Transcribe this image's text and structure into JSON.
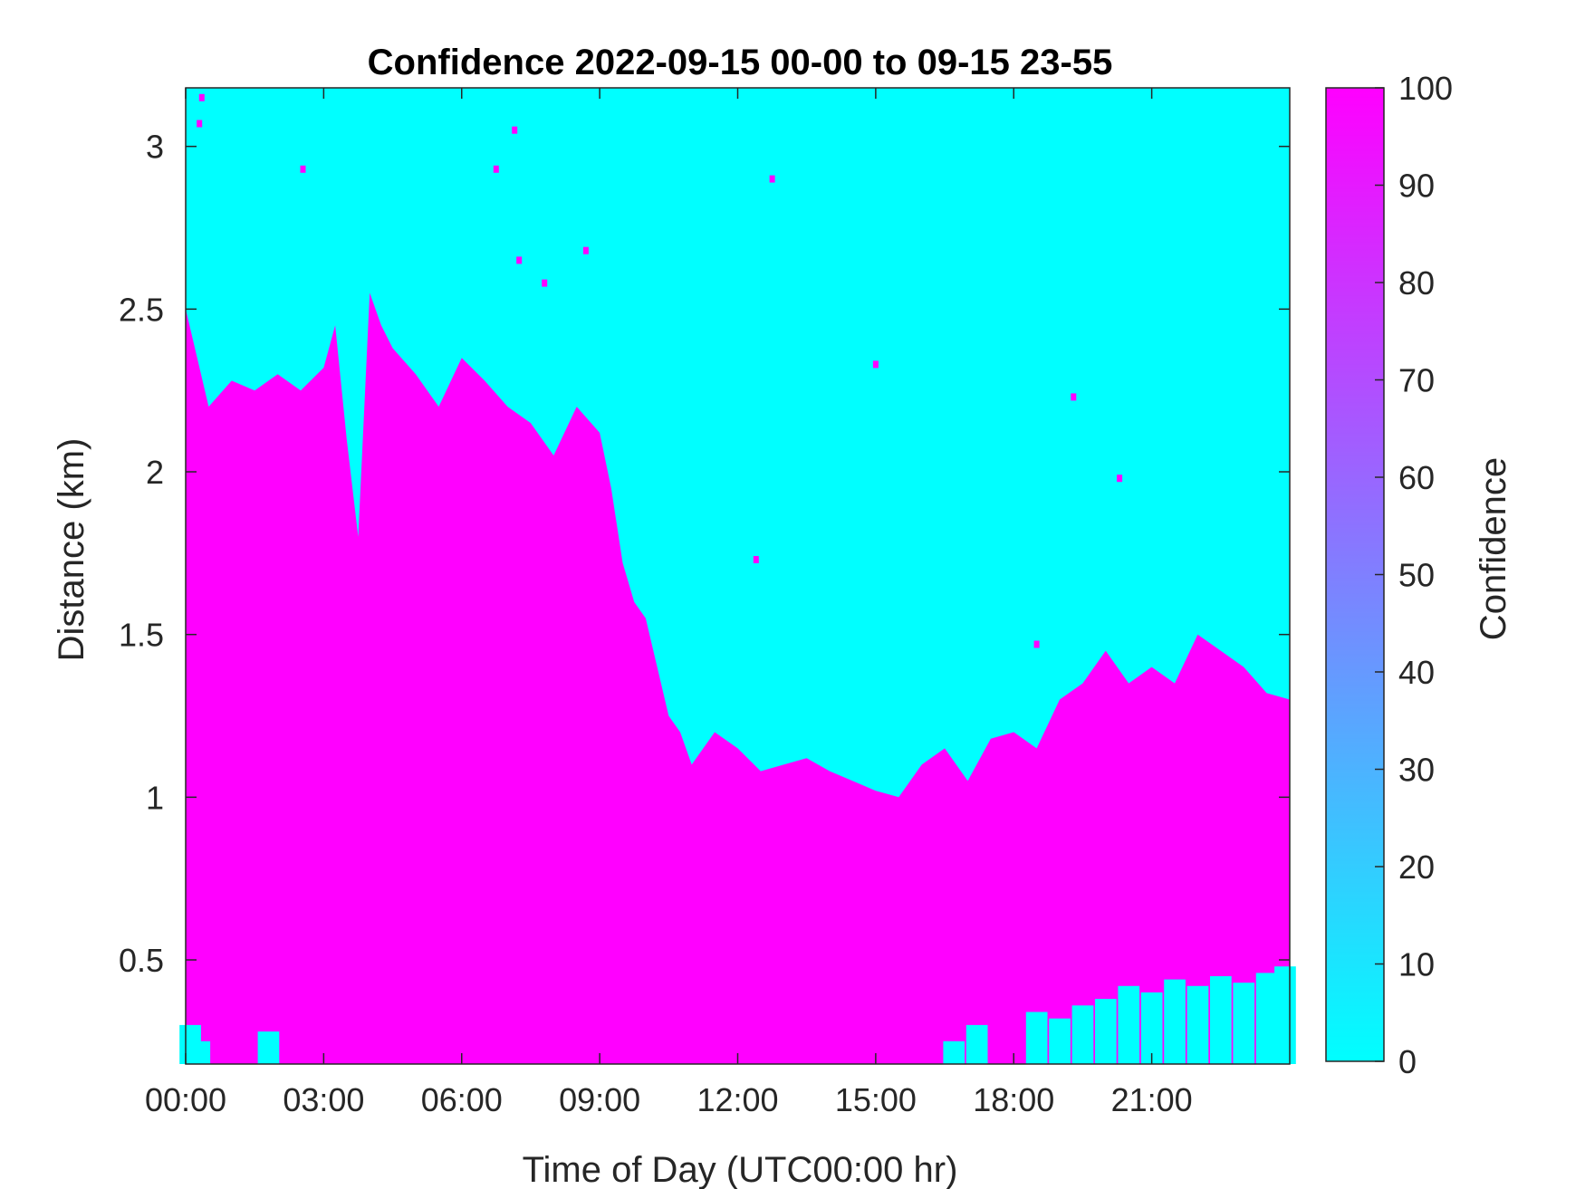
{
  "chart_data": {
    "type": "heatmap",
    "title": "Confidence 2022-09-15 00-00 to 09-15 23-55",
    "xlabel": "Time of Day (UTC00:00 hr)",
    "ylabel": "Distance (km)",
    "colorbar_label": "Confidence",
    "x_unit": "hours",
    "xlim": [
      0,
      24
    ],
    "ylim": [
      0.18,
      3.18
    ],
    "x_ticks": [
      0,
      3,
      6,
      9,
      12,
      15,
      18,
      21
    ],
    "x_tick_labels": [
      "00:00",
      "03:00",
      "06:00",
      "09:00",
      "12:00",
      "15:00",
      "18:00",
      "21:00"
    ],
    "y_ticks": [
      0.5,
      1,
      1.5,
      2,
      2.5,
      3
    ],
    "y_tick_labels": [
      "0.5",
      "1",
      "1.5",
      "2",
      "2.5",
      "3"
    ],
    "color_range": [
      0,
      100
    ],
    "colorbar_ticks": [
      0,
      10,
      20,
      30,
      40,
      50,
      60,
      70,
      80,
      90,
      100
    ],
    "colorbar_tick_labels": [
      "0",
      "10",
      "20",
      "30",
      "40",
      "50",
      "60",
      "70",
      "80",
      "90",
      "100"
    ],
    "colormap": {
      "low": "#00ffff",
      "high": "#ff00ff"
    },
    "high_confidence_top_km": {
      "hours": [
        0,
        0.5,
        1,
        1.5,
        2,
        2.5,
        3,
        3.25,
        3.5,
        3.75,
        4,
        4.25,
        4.5,
        5,
        5.5,
        6,
        6.5,
        7,
        7.5,
        8,
        8.5,
        9,
        9.25,
        9.5,
        9.75,
        10,
        10.25,
        10.5,
        10.75,
        11,
        11.5,
        12,
        12.5,
        13,
        13.5,
        14,
        14.5,
        15,
        15.5,
        16,
        16.5,
        17,
        17.5,
        18,
        18.5,
        19,
        19.5,
        20,
        20.5,
        21,
        21.5,
        22,
        22.5,
        23,
        23.5,
        24
      ],
      "distance_km": [
        2.5,
        2.2,
        2.28,
        2.25,
        2.3,
        2.25,
        2.32,
        2.45,
        2.1,
        1.8,
        2.55,
        2.45,
        2.38,
        2.3,
        2.2,
        2.35,
        2.28,
        2.2,
        2.15,
        2.05,
        2.2,
        2.12,
        1.95,
        1.72,
        1.6,
        1.55,
        1.4,
        1.25,
        1.2,
        1.1,
        1.2,
        1.15,
        1.08,
        1.1,
        1.12,
        1.08,
        1.05,
        1.02,
        1.0,
        1.1,
        1.15,
        1.05,
        1.18,
        1.2,
        1.15,
        1.3,
        1.35,
        1.45,
        1.35,
        1.4,
        1.35,
        1.5,
        1.45,
        1.4,
        1.32,
        1.3
      ]
    },
    "low_confidence_bottom": [
      {
        "hour": 0.1,
        "top_km": 0.3
      },
      {
        "hour": 0.3,
        "top_km": 0.25
      },
      {
        "hour": 1.8,
        "top_km": 0.28
      },
      {
        "hour": 16.7,
        "top_km": 0.25
      },
      {
        "hour": 17.2,
        "top_km": 0.3
      },
      {
        "hour": 18.5,
        "top_km": 0.34
      },
      {
        "hour": 19.0,
        "top_km": 0.32
      },
      {
        "hour": 19.5,
        "top_km": 0.36
      },
      {
        "hour": 20.0,
        "top_km": 0.38
      },
      {
        "hour": 20.5,
        "top_km": 0.42
      },
      {
        "hour": 21.0,
        "top_km": 0.4
      },
      {
        "hour": 21.5,
        "top_km": 0.44
      },
      {
        "hour": 22.0,
        "top_km": 0.42
      },
      {
        "hour": 22.5,
        "top_km": 0.45
      },
      {
        "hour": 23.0,
        "top_km": 0.43
      },
      {
        "hour": 23.5,
        "top_km": 0.46
      },
      {
        "hour": 23.9,
        "top_km": 0.48
      }
    ],
    "isolated_high_points": [
      {
        "hour": 0.35,
        "km": 3.15
      },
      {
        "hour": 0.3,
        "km": 3.07
      },
      {
        "hour": 2.55,
        "km": 2.93
      },
      {
        "hour": 6.75,
        "km": 2.93
      },
      {
        "hour": 7.15,
        "km": 3.05
      },
      {
        "hour": 7.25,
        "km": 2.65
      },
      {
        "hour": 7.8,
        "km": 2.58
      },
      {
        "hour": 8.7,
        "km": 2.68
      },
      {
        "hour": 12.75,
        "km": 2.9
      },
      {
        "hour": 15.0,
        "km": 2.33
      },
      {
        "hour": 19.3,
        "km": 2.23
      },
      {
        "hour": 20.3,
        "km": 1.98
      },
      {
        "hour": 12.4,
        "km": 1.73
      },
      {
        "hour": 18.5,
        "km": 1.47
      }
    ]
  }
}
